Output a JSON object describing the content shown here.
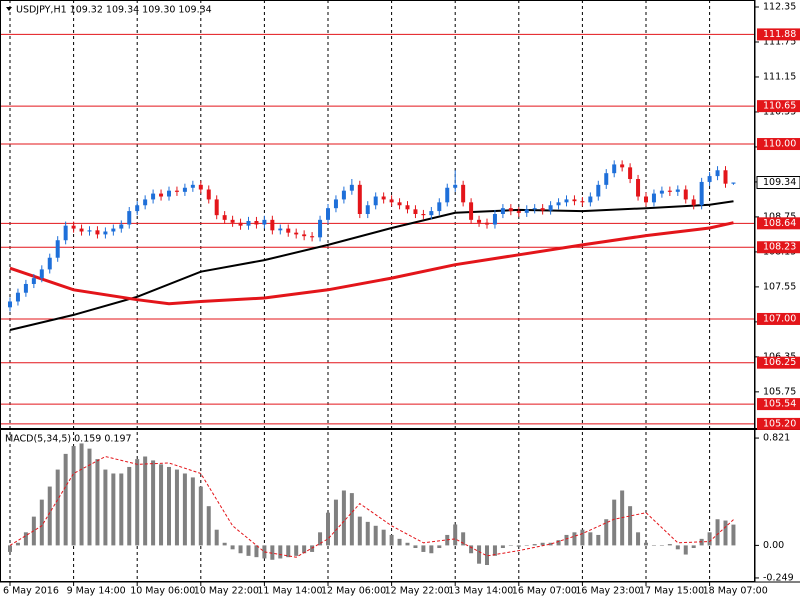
{
  "chart_data": [
    {
      "type": "candlestick",
      "title": "USDJPY,H1  109.32 109.34 109.30 109.34",
      "categories": [
        "6 May 2016",
        null,
        null,
        null,
        null,
        null,
        null,
        null,
        "9 May 14:00",
        null,
        null,
        null,
        null,
        null,
        null,
        null,
        "10 May 06:00",
        null,
        null,
        null,
        null,
        null,
        null,
        null,
        "10 May 22:00",
        null,
        null,
        null,
        null,
        null,
        null,
        null,
        "11 May 14:00",
        null,
        null,
        null,
        null,
        null,
        null,
        null,
        "12 May 06:00",
        null,
        null,
        null,
        null,
        null,
        null,
        null,
        "12 May 22:00",
        null,
        null,
        null,
        null,
        null,
        null,
        null,
        "13 May 14:00",
        null,
        null,
        null,
        null,
        null,
        null,
        null,
        "16 May 07:00",
        null,
        null,
        null,
        null,
        null,
        null,
        null,
        "16 May 23:00",
        null,
        null,
        null,
        null,
        null,
        null,
        null,
        "17 May 15:00",
        null,
        null,
        null,
        null,
        null,
        null,
        null,
        "18 May 07:00",
        null,
        null,
        null
      ],
      "open": [
        107.2,
        107.3,
        107.45,
        107.6,
        107.7,
        107.85,
        108.05,
        108.35,
        108.6,
        108.55,
        108.5,
        108.52,
        108.45,
        108.5,
        108.55,
        108.62,
        108.85,
        108.95,
        109.05,
        109.15,
        109.1,
        109.2,
        109.18,
        109.25,
        109.3,
        109.22,
        109.05,
        108.78,
        108.7,
        108.65,
        108.6,
        108.68,
        108.62,
        108.7,
        108.52,
        108.55,
        108.48,
        108.45,
        108.42,
        108.4,
        108.7,
        108.9,
        109.05,
        109.2,
        109.3,
        108.8,
        108.95,
        109.1,
        109.05,
        109.0,
        108.95,
        108.88,
        108.8,
        108.78,
        108.85,
        109.0,
        109.25,
        109.3,
        109.0,
        108.7,
        108.65,
        108.62,
        108.8,
        108.9,
        108.85,
        108.82,
        108.88,
        108.9,
        108.86,
        108.95,
        109.0,
        109.05,
        109.02,
        109.0,
        109.1,
        109.3,
        109.5,
        109.65,
        109.6,
        109.4,
        109.1,
        109.0,
        109.15,
        109.2,
        109.18,
        109.22,
        109.05,
        108.95,
        109.35,
        109.45,
        109.55,
        109.32
      ],
      "high": [
        107.37,
        107.52,
        107.67,
        107.77,
        107.92,
        108.12,
        108.42,
        108.67,
        108.67,
        108.62,
        108.59,
        108.59,
        108.57,
        108.62,
        108.69,
        108.92,
        109.02,
        109.12,
        109.22,
        109.22,
        109.27,
        109.27,
        109.32,
        109.37,
        109.37,
        109.29,
        109.12,
        108.85,
        108.77,
        108.72,
        108.75,
        108.75,
        108.77,
        108.77,
        108.62,
        108.62,
        108.55,
        108.52,
        108.49,
        108.77,
        108.97,
        109.12,
        109.27,
        109.4,
        109.37,
        109.02,
        109.17,
        109.17,
        109.12,
        109.07,
        109.02,
        108.95,
        108.87,
        108.92,
        109.07,
        109.32,
        109.55,
        109.37,
        109.07,
        108.77,
        108.72,
        108.87,
        108.97,
        108.97,
        108.92,
        108.95,
        108.97,
        108.97,
        109.02,
        109.07,
        109.12,
        109.12,
        109.09,
        109.17,
        109.37,
        109.57,
        109.72,
        109.72,
        109.67,
        109.47,
        109.17,
        109.22,
        109.27,
        109.27,
        109.29,
        109.29,
        109.12,
        109.42,
        109.52,
        109.62,
        109.62,
        109.34
      ],
      "low": [
        107.13,
        107.23,
        107.38,
        107.53,
        107.63,
        107.78,
        107.98,
        108.28,
        108.48,
        108.43,
        108.43,
        108.38,
        108.38,
        108.43,
        108.48,
        108.55,
        108.78,
        108.88,
        108.98,
        109.03,
        109.03,
        109.11,
        109.11,
        109.18,
        109.15,
        108.98,
        108.71,
        108.63,
        108.58,
        108.53,
        108.53,
        108.55,
        108.55,
        108.45,
        108.45,
        108.41,
        108.38,
        108.35,
        108.33,
        108.33,
        108.63,
        108.83,
        108.98,
        109.13,
        108.73,
        108.73,
        108.88,
        108.98,
        108.93,
        108.88,
        108.81,
        108.73,
        108.71,
        108.71,
        108.78,
        108.93,
        109.18,
        108.93,
        108.63,
        108.58,
        108.55,
        108.55,
        108.73,
        108.78,
        108.75,
        108.75,
        108.81,
        108.79,
        108.79,
        108.88,
        108.93,
        108.95,
        108.93,
        108.93,
        109.03,
        109.23,
        109.43,
        109.53,
        109.33,
        109.03,
        108.93,
        108.93,
        109.08,
        109.11,
        109.11,
        108.98,
        108.88,
        108.88,
        109.28,
        109.38,
        109.25,
        109.3
      ],
      "close": [
        107.3,
        107.45,
        107.6,
        107.7,
        107.85,
        108.05,
        108.35,
        108.6,
        108.55,
        108.5,
        108.52,
        108.45,
        108.5,
        108.55,
        108.62,
        108.85,
        108.95,
        109.05,
        109.15,
        109.1,
        109.2,
        109.18,
        109.25,
        109.3,
        109.22,
        109.05,
        108.78,
        108.7,
        108.65,
        108.6,
        108.68,
        108.62,
        108.7,
        108.52,
        108.55,
        108.48,
        108.45,
        108.42,
        108.4,
        108.7,
        108.9,
        109.05,
        109.2,
        109.3,
        108.8,
        108.95,
        109.1,
        109.05,
        109.0,
        108.95,
        108.88,
        108.8,
        108.78,
        108.85,
        109.0,
        109.25,
        109.3,
        109.0,
        108.7,
        108.65,
        108.62,
        108.8,
        108.9,
        108.85,
        108.82,
        108.88,
        108.9,
        108.86,
        108.95,
        109.0,
        109.05,
        109.02,
        109.0,
        109.1,
        109.3,
        109.5,
        109.65,
        109.6,
        109.4,
        109.1,
        109.0,
        109.15,
        109.2,
        109.18,
        109.22,
        109.05,
        108.95,
        109.35,
        109.45,
        109.55,
        109.32,
        109.34
      ],
      "up_color": "#1e6fd9",
      "down_color": "#e3151a",
      "moving_averages": [
        {
          "color": "#000000",
          "x": [
            0,
            8,
            16,
            24,
            32,
            40,
            48,
            56,
            64,
            72,
            80,
            88,
            91
          ],
          "values": [
            106.81,
            107.07,
            107.38,
            107.81,
            108.01,
            108.27,
            108.56,
            108.82,
            108.87,
            108.85,
            108.9,
            108.96,
            109.02
          ]
        },
        {
          "color": "#e3151a",
          "x": [
            0,
            8,
            16,
            20,
            24,
            32,
            40,
            48,
            56,
            64,
            72,
            80,
            88,
            91
          ],
          "values": [
            107.87,
            107.5,
            107.33,
            107.26,
            107.3,
            107.36,
            107.5,
            107.7,
            107.93,
            108.1,
            108.27,
            108.43,
            108.56,
            108.65
          ]
        }
      ],
      "levels": [
        {
          "value": 111.88,
          "label": "111.88"
        },
        {
          "value": 110.65,
          "label": "110.65"
        },
        {
          "value": 110,
          "label": "110.00"
        },
        {
          "value": 108.64,
          "label": "108.64"
        },
        {
          "value": 108.23,
          "label": "108.23"
        },
        {
          "value": 107,
          "label": "107.00"
        },
        {
          "value": 106.25,
          "label": "106.25"
        },
        {
          "value": 105.54,
          "label": "105.54"
        },
        {
          "value": 105.2,
          "label": "105.20"
        }
      ],
      "level_color": "#e3151a",
      "ylim": [
        105.13,
        112.47
      ],
      "yticks": [
        112.35,
        111.75,
        111.15,
        110.55,
        109.95,
        109.35,
        108.75,
        108.15,
        107.55,
        106.95,
        106.35,
        105.75
      ]
    },
    {
      "type": "bar",
      "title": "MACD(5,34,5) 0.159 0.197",
      "color": "#808080",
      "signal_color": "#e3151a",
      "values": [
        -0.05,
        0.02,
        0.1,
        0.22,
        0.35,
        0.45,
        0.58,
        0.7,
        0.76,
        0.78,
        0.74,
        0.66,
        0.58,
        0.55,
        0.55,
        0.6,
        0.66,
        0.68,
        0.65,
        0.62,
        0.6,
        0.58,
        0.55,
        0.52,
        0.45,
        0.3,
        0.12,
        0.02,
        -0.03,
        -0.06,
        -0.08,
        -0.09,
        -0.1,
        -0.11,
        -0.1,
        -0.09,
        -0.08,
        -0.06,
        -0.05,
        0.1,
        0.25,
        0.35,
        0.42,
        0.4,
        0.22,
        0.18,
        0.15,
        0.12,
        0.08,
        0.05,
        0.02,
        -0.02,
        -0.05,
        -0.06,
        -0.02,
        0.08,
        0.16,
        0.1,
        -0.06,
        -0.14,
        -0.15,
        -0.08,
        -0.02,
        0.0,
        -0.01,
        0.0,
        0.01,
        0.02,
        0.02,
        0.04,
        0.08,
        0.1,
        0.12,
        0.1,
        0.08,
        0.2,
        0.35,
        0.42,
        0.3,
        0.1,
        0.02,
        0.0,
        0.0,
        0.01,
        -0.03,
        -0.07,
        -0.02,
        0.05,
        0.1,
        0.2,
        0.19,
        0.159
      ],
      "signal": {
        "x": [
          0,
          4,
          8,
          12,
          16,
          20,
          24,
          28,
          32,
          36,
          40,
          44,
          48,
          52,
          56,
          60,
          64,
          68,
          72,
          76,
          80,
          84,
          88,
          91
        ],
        "values": [
          0.0,
          0.15,
          0.55,
          0.68,
          0.62,
          0.63,
          0.55,
          0.15,
          -0.05,
          -0.09,
          0.05,
          0.32,
          0.15,
          0.02,
          0.05,
          -0.08,
          -0.04,
          0.01,
          0.09,
          0.2,
          0.25,
          0.02,
          0.03,
          0.197
        ]
      },
      "ylim": [
        -0.28,
        0.875
      ],
      "yticks": [
        0.821,
        {
          "value": 0,
          "label": "0.00"
        },
        -0.249
      ]
    }
  ]
}
